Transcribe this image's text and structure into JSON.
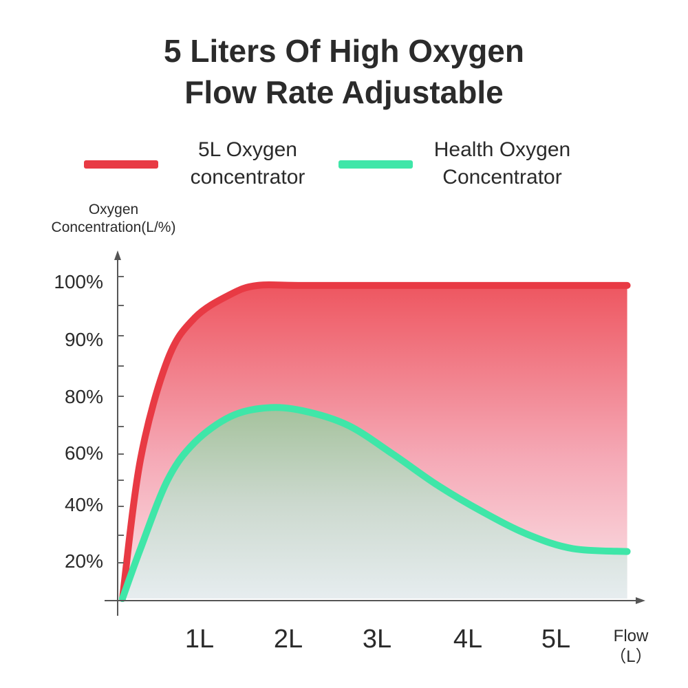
{
  "title_line1": "5 Liters Of High Oxygen",
  "title_line2": "Flow Rate Adjustable",
  "legend": [
    {
      "line1": "5L Oxygen",
      "line2": "concentrator",
      "color": "#e83a44"
    },
    {
      "line1": "Health Oxygen",
      "line2": "Concentrator",
      "color": "#3fe6a8"
    }
  ],
  "chart_data": {
    "type": "area",
    "ylabel_line1": "Oxygen",
    "ylabel_line2": "Concentration(L/%)",
    "xlabel_line1": "Flow",
    "xlabel_line2": "（L）",
    "x_ticks": [
      "1L",
      "2L",
      "3L",
      "4L",
      "5L"
    ],
    "y_ticks": [
      "100%",
      "90%",
      "80%",
      "60%",
      "40%",
      "20%"
    ],
    "series": [
      {
        "name": "5L Oxygen concentrator",
        "color": "#e83a44",
        "x": [
          0,
          0.2,
          0.5,
          0.8,
          1.2,
          1.5,
          2,
          3,
          4,
          5,
          5.6
        ],
        "y": [
          0,
          58,
          86,
          93,
          97,
          98.5,
          98.5,
          98.5,
          98.5,
          98.5,
          98.5
        ]
      },
      {
        "name": "Health Oxygen Concentrator",
        "color": "#3fe6a8",
        "x": [
          0,
          0.2,
          0.5,
          0.8,
          1.2,
          1.6,
          2,
          2.5,
          3,
          3.5,
          4,
          4.5,
          5,
          5.6
        ],
        "y": [
          0,
          25,
          50,
          64,
          73,
          76,
          75,
          70,
          60,
          48,
          38,
          30,
          25,
          24
        ]
      }
    ]
  }
}
